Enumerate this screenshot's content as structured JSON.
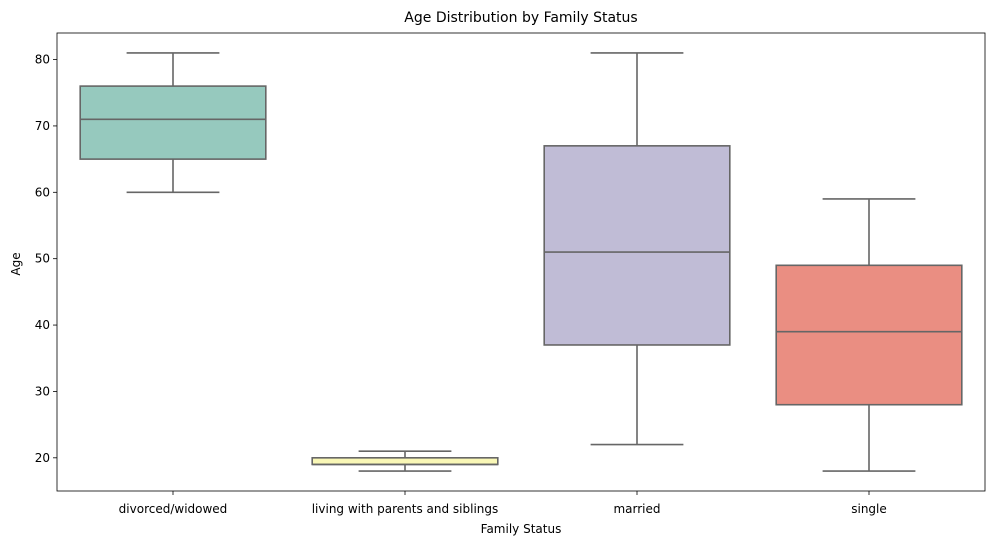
{
  "chart_data": {
    "type": "box",
    "title": "Age Distribution by Family Status",
    "xlabel": "Family Status",
    "ylabel": "Age",
    "ylim": [
      15,
      84
    ],
    "yticks": [
      20,
      30,
      40,
      50,
      60,
      70,
      80
    ],
    "grid": false,
    "categories": [
      "divorced/widowed",
      "living with parents and siblings",
      "married",
      "single"
    ],
    "boxes": [
      {
        "whisker_low": 60,
        "q1": 65,
        "median": 71,
        "q3": 76,
        "whisker_high": 81,
        "color": "#96c9be"
      },
      {
        "whisker_low": 18,
        "q1": 19,
        "median": 19,
        "q3": 20,
        "whisker_high": 21,
        "color": "#f9f7b6"
      },
      {
        "whisker_low": 22,
        "q1": 37,
        "median": 51,
        "q3": 67,
        "whisker_high": 81,
        "color": "#c0bcd6"
      },
      {
        "whisker_low": 18,
        "q1": 28,
        "median": 39,
        "q3": 49,
        "whisker_high": 59,
        "color": "#ea8e82"
      }
    ],
    "line_color": "#666666"
  }
}
